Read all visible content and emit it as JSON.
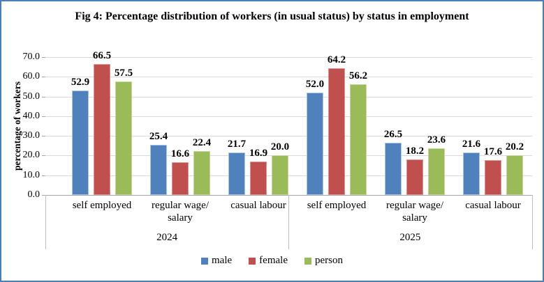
{
  "frame": {
    "border_color": "#4a7ebb",
    "background": "#ffffff"
  },
  "chart_data": {
    "type": "bar",
    "title": "Fig 4: Percentage distribution  of workers (in usual status) by status in employment",
    "ylabel": "percentage of workers",
    "ylim": [
      0,
      70
    ],
    "yticks": [
      "0.0",
      "10.0",
      "20.0",
      "30.0",
      "40.0",
      "50.0",
      "60.0",
      "70.0"
    ],
    "grid": true,
    "legend_position": "bottom",
    "legend": [
      "male",
      "female",
      "person"
    ],
    "palette": {
      "male": {
        "fill": "#4F81BD",
        "border": "#A9C4E4"
      },
      "female": {
        "fill": "#C0504D",
        "border": "#D99694"
      },
      "person": {
        "fill": "#9BBB59",
        "border": "#C3D69B"
      },
      "gridline": "#D9D9D9",
      "axis": "#A6A6A6",
      "separator": "#BFBFBF",
      "text": "#000000"
    },
    "year_groups": [
      {
        "year": "2024",
        "categories": [
          "self employed",
          "regular wage/\nsalary",
          "casual labour"
        ],
        "series": [
          {
            "name": "male",
            "values": [
              52.9,
              25.4,
              21.7
            ]
          },
          {
            "name": "female",
            "values": [
              66.5,
              16.6,
              16.9
            ]
          },
          {
            "name": "person",
            "values": [
              57.5,
              22.4,
              20.0
            ]
          }
        ]
      },
      {
        "year": "2025",
        "categories": [
          "self employed",
          "regular wage/\nsalary",
          "casual labour"
        ],
        "series": [
          {
            "name": "male",
            "values": [
              52.0,
              26.5,
              21.6
            ]
          },
          {
            "name": "female",
            "values": [
              64.2,
              18.2,
              17.6
            ]
          },
          {
            "name": "person",
            "values": [
              56.2,
              23.6,
              20.2
            ]
          }
        ]
      }
    ],
    "value_label_decimals": 1
  }
}
